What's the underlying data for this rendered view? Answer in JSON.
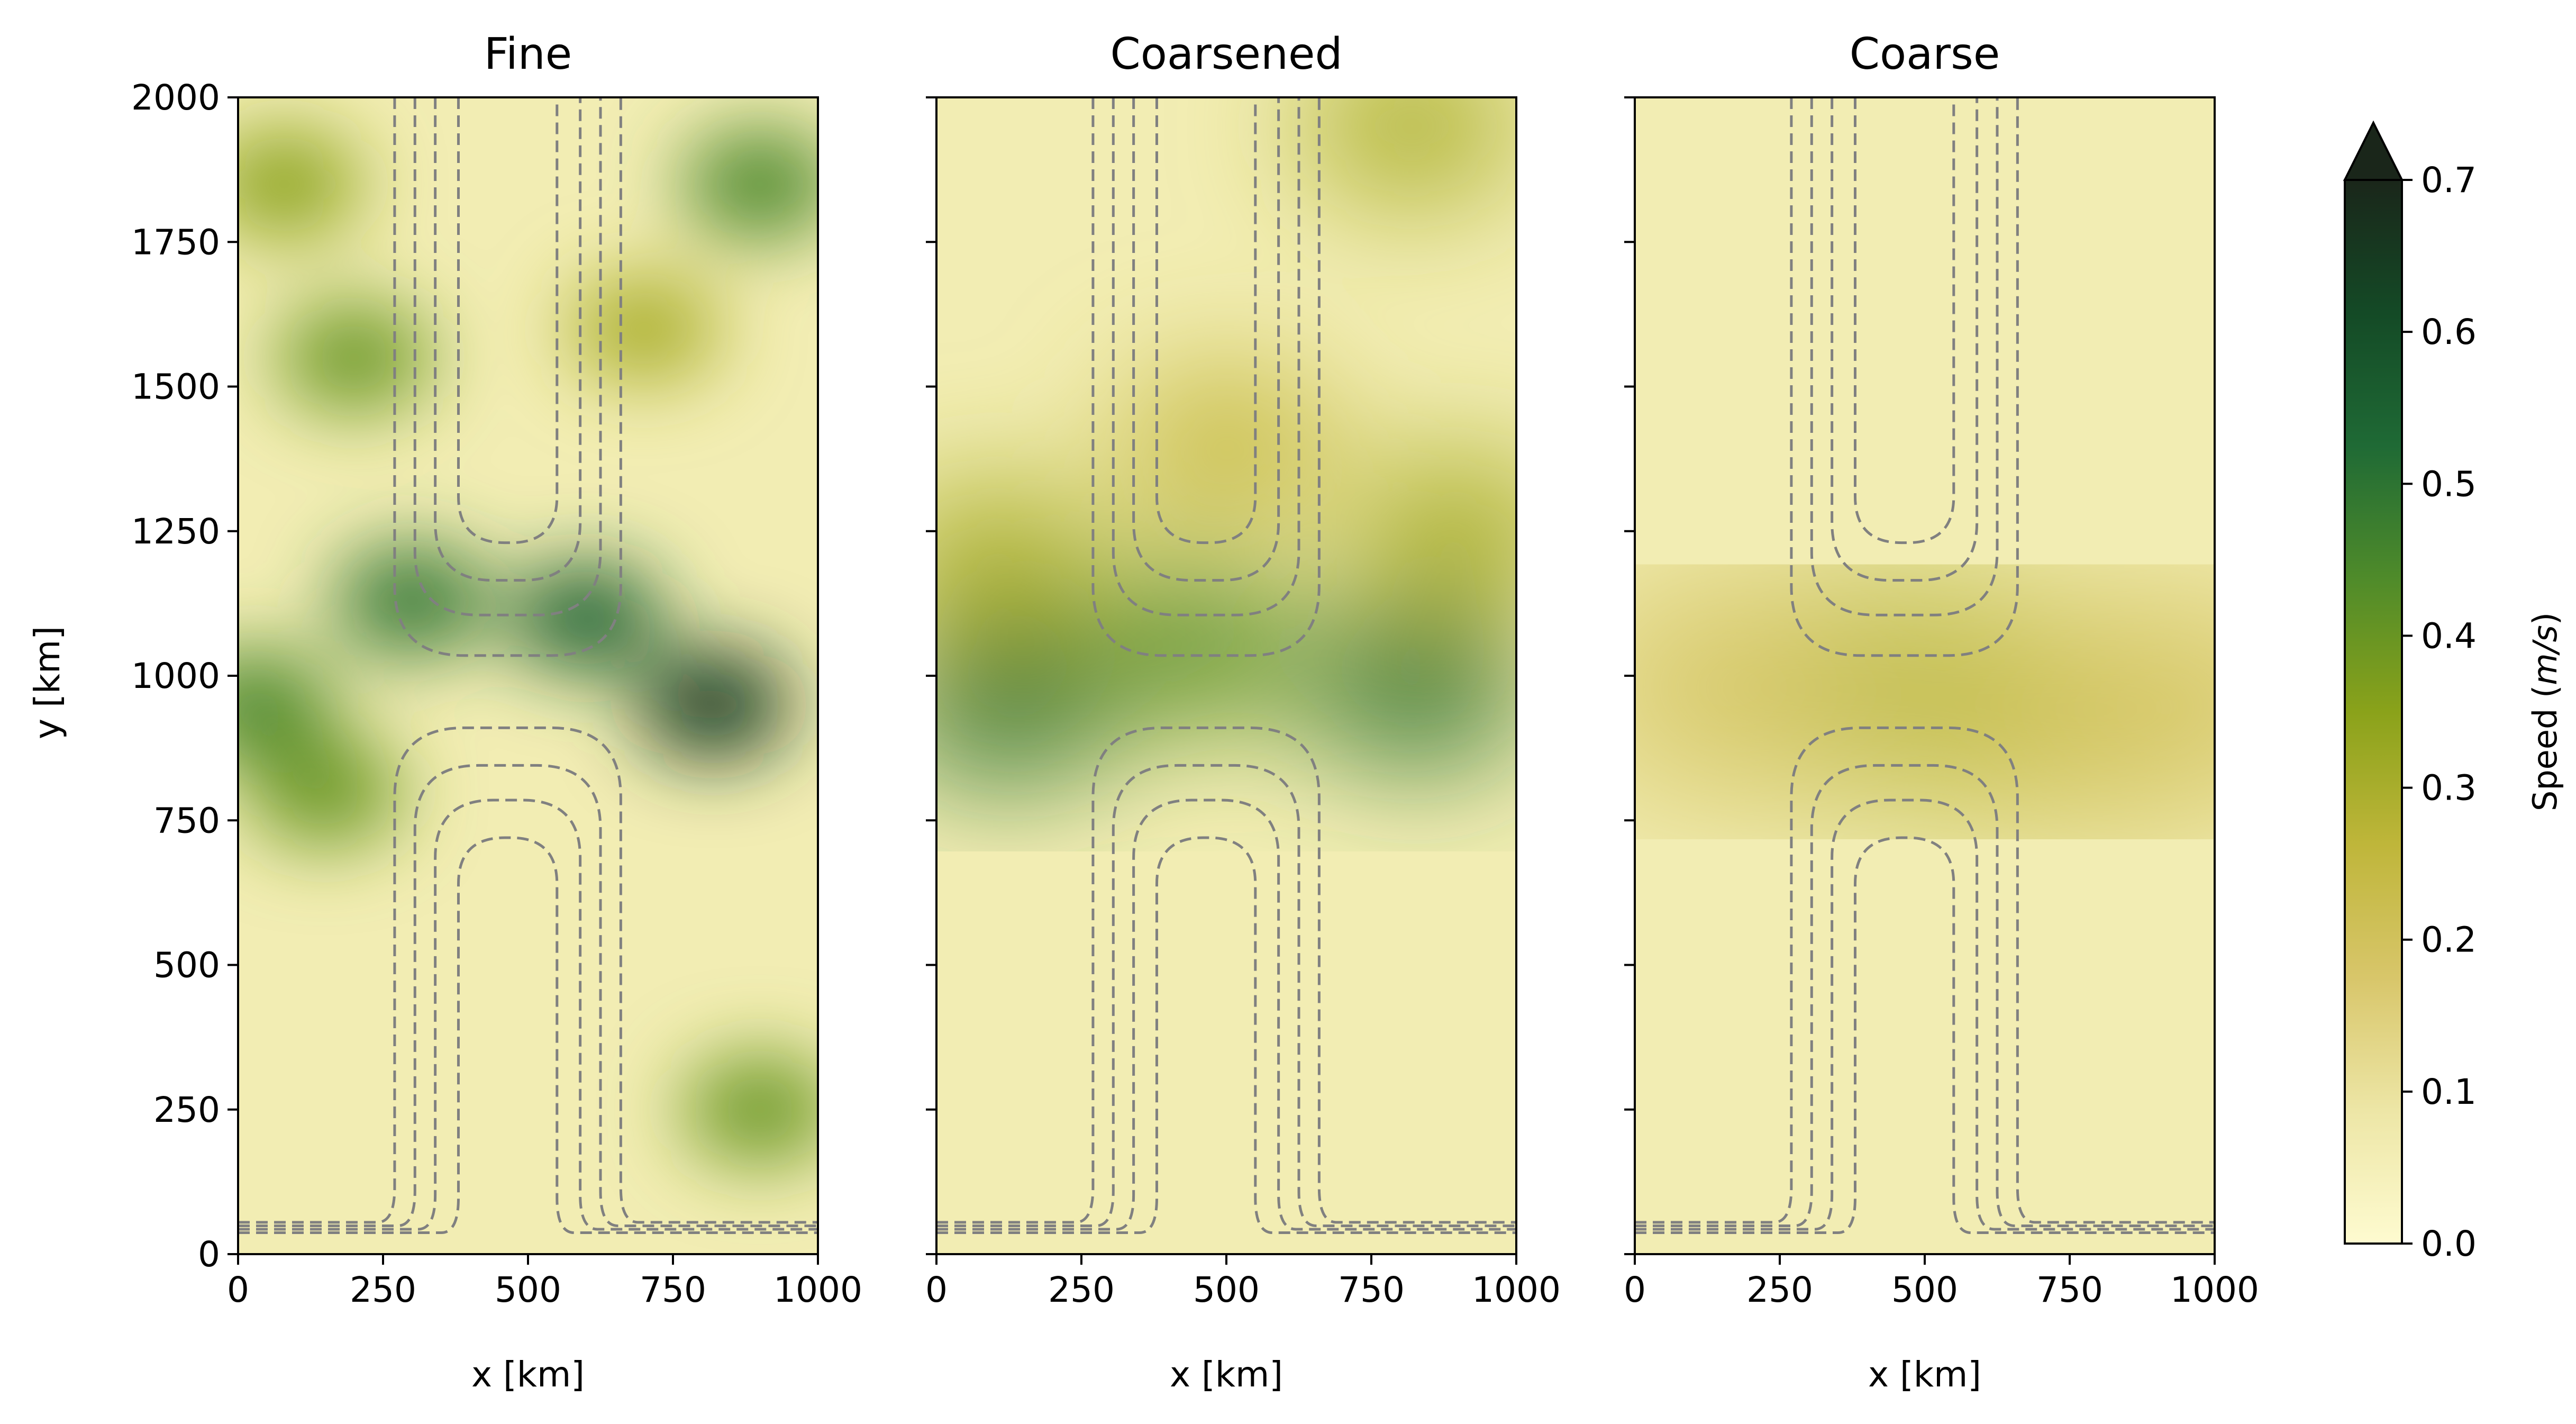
{
  "chart_data": [
    {
      "type": "heatmap",
      "title": "Fine",
      "xlabel": "x [km]",
      "ylabel": "y [km]",
      "xlim": [
        0,
        1000
      ],
      "ylim": [
        0,
        2000
      ],
      "xticks": [
        "0",
        "250",
        "500",
        "750",
        "1000"
      ],
      "yticks": [
        "0",
        "250",
        "500",
        "750",
        "1000",
        "1250",
        "1500",
        "1750",
        "2000"
      ],
      "resolution": "fine",
      "speed_features": [
        {
          "x": 820,
          "y": 950,
          "speed": 0.65
        },
        {
          "x": 600,
          "y": 1100,
          "speed": 0.55
        },
        {
          "x": 300,
          "y": 1130,
          "speed": 0.5
        },
        {
          "x": 30,
          "y": 950,
          "speed": 0.45
        },
        {
          "x": 150,
          "y": 800,
          "speed": 0.4
        },
        {
          "x": 200,
          "y": 1550,
          "speed": 0.4
        },
        {
          "x": 80,
          "y": 1850,
          "speed": 0.35
        },
        {
          "x": 900,
          "y": 1850,
          "speed": 0.45
        },
        {
          "x": 900,
          "y": 250,
          "speed": 0.4
        },
        {
          "x": 700,
          "y": 1600,
          "speed": 0.3
        }
      ]
    },
    {
      "type": "heatmap",
      "title": "Coarsened",
      "xlabel": "x [km]",
      "ylabel": "",
      "xlim": [
        0,
        1000
      ],
      "ylim": [
        0,
        2000
      ],
      "xticks": [
        "0",
        "250",
        "500",
        "750",
        "1000"
      ],
      "yticks": [],
      "resolution": "medium",
      "speed_features": [
        {
          "x": 120,
          "y": 950,
          "speed": 0.5
        },
        {
          "x": 830,
          "y": 980,
          "speed": 0.5
        },
        {
          "x": 450,
          "y": 1050,
          "speed": 0.42
        },
        {
          "x": 100,
          "y": 1200,
          "speed": 0.3
        },
        {
          "x": 900,
          "y": 1250,
          "speed": 0.3
        },
        {
          "x": 820,
          "y": 1950,
          "speed": 0.3
        },
        {
          "x": 500,
          "y": 1400,
          "speed": 0.25
        }
      ]
    },
    {
      "type": "heatmap",
      "title": "Coarse",
      "xlabel": "x [km]",
      "ylabel": "",
      "xlim": [
        0,
        1000
      ],
      "ylim": [
        0,
        2000
      ],
      "xticks": [
        "0",
        "250",
        "500",
        "750",
        "1000"
      ],
      "yticks": [],
      "resolution": "coarse",
      "speed_features": [
        {
          "x": 450,
          "y": 980,
          "speed": 0.3
        },
        {
          "x": 750,
          "y": 930,
          "speed": 0.25
        },
        {
          "x": 150,
          "y": 980,
          "speed": 0.2
        },
        {
          "x": 950,
          "y": 950,
          "speed": 0.2
        }
      ]
    }
  ],
  "colorbar": {
    "label": "Speed (m/s)",
    "label_prefix": "Speed (",
    "label_italic": "m/s",
    "label_suffix": ")",
    "min": 0.0,
    "max": 0.7,
    "ticks": [
      "0.0",
      "0.1",
      "0.2",
      "0.3",
      "0.4",
      "0.5",
      "0.6",
      "0.7"
    ],
    "extend": "max",
    "colors": [
      "#fefbd0",
      "#ede6a6",
      "#d8c66a",
      "#bfb63a",
      "#8aa21a",
      "#4f8b2a",
      "#1f6a35",
      "#144a26",
      "#1a261a"
    ]
  },
  "contour_style": {
    "color": "#808080",
    "linestyle": "dashed"
  }
}
